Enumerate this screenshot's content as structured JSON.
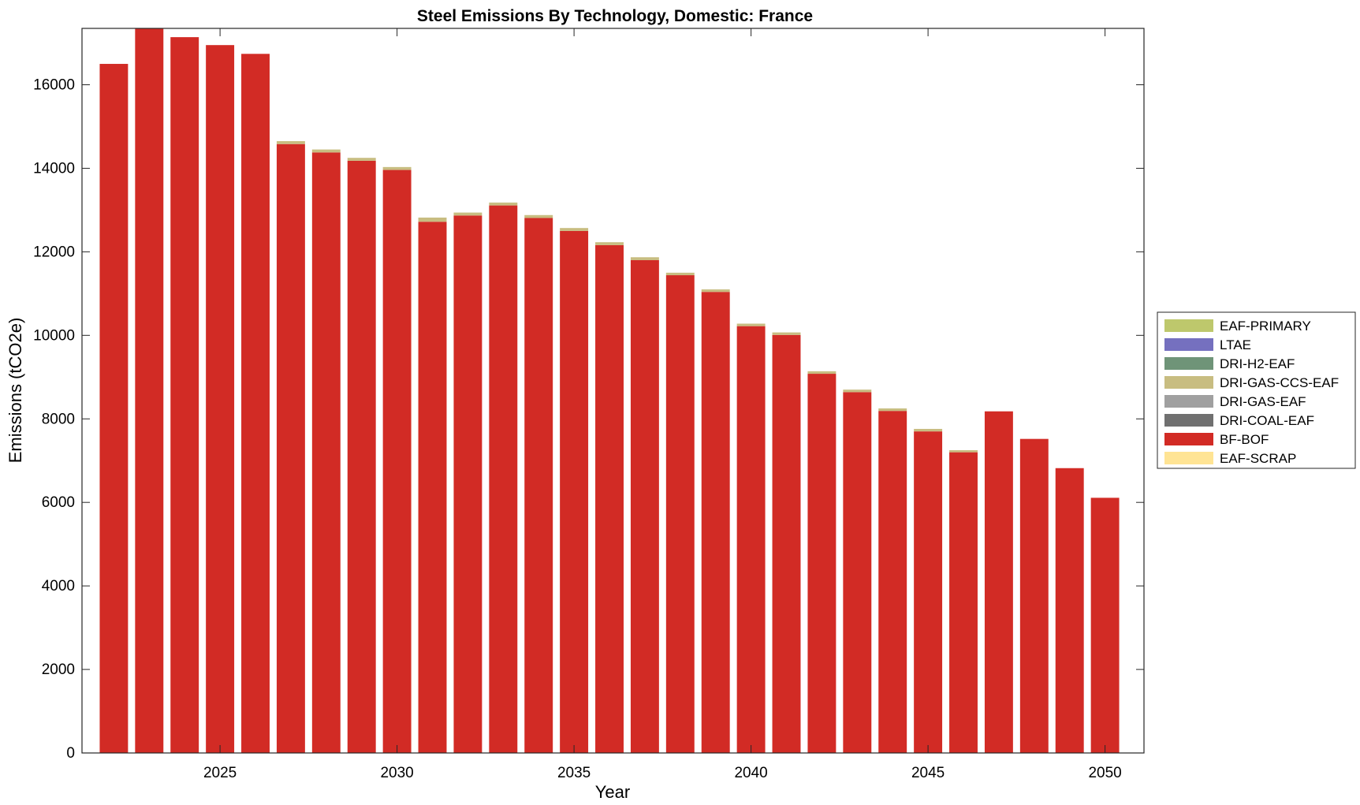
{
  "chart_data": {
    "type": "bar",
    "stacked": true,
    "title": "Steel Emissions By Technology, Domestic: France",
    "xlabel": "Year",
    "ylabel": "Emissions (tCO2e)",
    "x": [
      2022,
      2023,
      2024,
      2025,
      2026,
      2027,
      2028,
      2029,
      2030,
      2031,
      2032,
      2033,
      2034,
      2035,
      2036,
      2037,
      2038,
      2039,
      2040,
      2041,
      2042,
      2043,
      2044,
      2045,
      2046,
      2047,
      2048,
      2049,
      2050
    ],
    "xlim": [
      2021.1,
      2051.1
    ],
    "ylim": [
      0,
      17350
    ],
    "xticks": [
      2025,
      2030,
      2035,
      2040,
      2045,
      2050
    ],
    "yticks": [
      0,
      2000,
      4000,
      6000,
      8000,
      10000,
      12000,
      14000,
      16000
    ],
    "grid": false,
    "legend_position": "right",
    "series": [
      {
        "name": "EAF-SCRAP",
        "color": "#ffe494",
        "values": [
          0,
          0,
          0,
          0,
          0,
          0,
          0,
          0,
          0,
          0,
          0,
          0,
          0,
          0,
          0,
          0,
          0,
          0,
          0,
          0,
          0,
          0,
          0,
          0,
          0,
          0,
          0,
          0,
          0
        ]
      },
      {
        "name": "BF-BOF",
        "color": "#d22b25",
        "values": [
          16500,
          17350,
          17140,
          16950,
          16740,
          14580,
          14380,
          14180,
          13960,
          12720,
          12870,
          13110,
          12810,
          12500,
          12160,
          11800,
          11440,
          11040,
          10220,
          10010,
          9080,
          8640,
          8190,
          7700,
          7200,
          8180,
          7520,
          6820,
          6110
        ]
      },
      {
        "name": "DRI-COAL-EAF",
        "color": "#707070",
        "values": [
          0,
          0,
          0,
          0,
          0,
          0,
          0,
          0,
          0,
          0,
          0,
          0,
          0,
          0,
          0,
          0,
          0,
          0,
          0,
          0,
          0,
          0,
          0,
          0,
          0,
          0,
          0,
          0,
          0
        ]
      },
      {
        "name": "DRI-GAS-EAF",
        "color": "#a0a0a0",
        "values": [
          0,
          0,
          0,
          0,
          0,
          0,
          0,
          0,
          0,
          0,
          0,
          0,
          0,
          0,
          0,
          0,
          0,
          0,
          0,
          0,
          0,
          0,
          0,
          0,
          0,
          0,
          0,
          0,
          0
        ]
      },
      {
        "name": "DRI-GAS-CCS-EAF",
        "color": "#c8bd81",
        "values": [
          0,
          0,
          0,
          0,
          0,
          70,
          70,
          70,
          70,
          100,
          70,
          70,
          70,
          70,
          70,
          70,
          60,
          60,
          60,
          60,
          60,
          60,
          60,
          60,
          50,
          0,
          0,
          0,
          0
        ]
      },
      {
        "name": "DRI-H2-EAF",
        "color": "#6f9478",
        "values": [
          0,
          0,
          0,
          0,
          0,
          0,
          0,
          0,
          0,
          0,
          0,
          0,
          0,
          0,
          0,
          0,
          0,
          0,
          0,
          0,
          0,
          0,
          0,
          0,
          0,
          0,
          0,
          0,
          0
        ]
      },
      {
        "name": "LTAE",
        "color": "#7570bf",
        "values": [
          0,
          0,
          0,
          0,
          0,
          0,
          0,
          0,
          0,
          0,
          0,
          0,
          0,
          0,
          0,
          0,
          0,
          0,
          0,
          0,
          0,
          0,
          0,
          0,
          0,
          0,
          0,
          0,
          0
        ]
      },
      {
        "name": "EAF-PRIMARY",
        "color": "#bec86c",
        "values": [
          0,
          0,
          0,
          0,
          0,
          0,
          0,
          0,
          0,
          0,
          0,
          0,
          0,
          0,
          0,
          0,
          0,
          0,
          0,
          0,
          0,
          0,
          0,
          0,
          0,
          0,
          0,
          0,
          0
        ]
      }
    ],
    "legend_order": [
      "EAF-PRIMARY",
      "LTAE",
      "DRI-H2-EAF",
      "DRI-GAS-CCS-EAF",
      "DRI-GAS-EAF",
      "DRI-COAL-EAF",
      "BF-BOF",
      "EAF-SCRAP"
    ]
  }
}
